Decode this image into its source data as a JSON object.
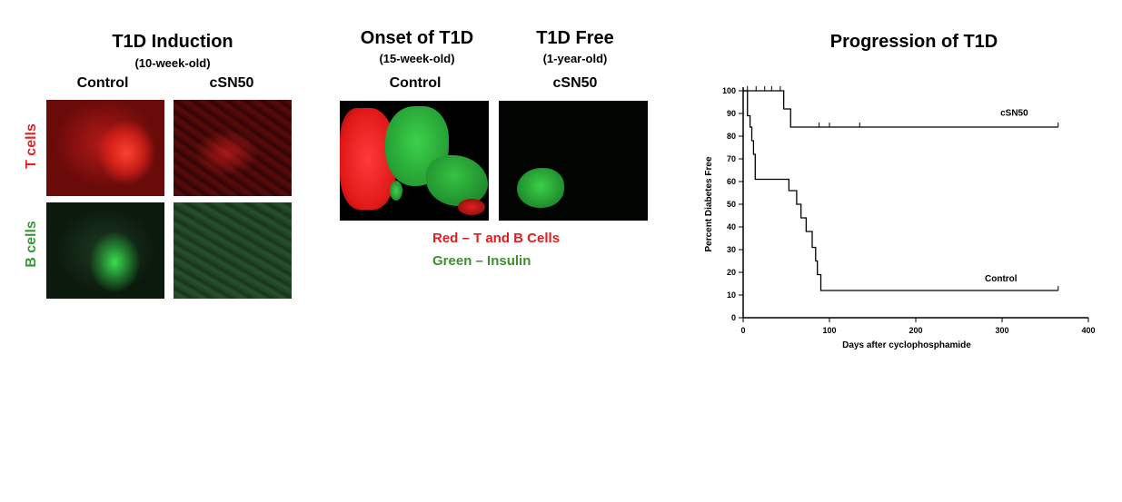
{
  "induction": {
    "title": "T1D Induction",
    "subtitle": "(10-week-old)",
    "columns": [
      "Control",
      "cSN50"
    ],
    "rows": [
      "T cells",
      "B cells"
    ]
  },
  "onset": {
    "title": "Onset of T1D",
    "subtitle": "(15-week-old)",
    "column": "Control"
  },
  "free": {
    "title": "T1D Free",
    "subtitle": "(1-year-old)",
    "column": "cSN50"
  },
  "stain_legend": {
    "red": "Red – T and B Cells",
    "green": "Green – Insulin"
  },
  "colors": {
    "t_cells": "#d9262a",
    "b_cells": "#3a9a3a",
    "legend_red": "#e01e1e",
    "legend_green": "#3f8f2e",
    "micro_red": "#ff2a2a",
    "micro_green": "#2ecc40"
  },
  "chart_data": {
    "type": "line",
    "title": "Progression of T1D",
    "xlabel": "Days after cyclophosphamide",
    "ylabel": "Percent Diabetes Free",
    "xlim": [
      0,
      400
    ],
    "ylim": [
      0,
      100
    ],
    "xticks": [
      0,
      100,
      200,
      300,
      400
    ],
    "yticks": [
      0,
      10,
      20,
      30,
      40,
      50,
      60,
      70,
      80,
      90,
      100
    ],
    "series": [
      {
        "name": "cSN50",
        "step_x": [
          0,
          47,
          47,
          50,
          50,
          55,
          55,
          365
        ],
        "step_y": [
          100,
          100,
          92,
          92,
          92,
          92,
          84,
          84
        ],
        "censor_x": [
          5,
          15,
          25,
          33,
          43,
          88,
          100,
          135,
          365
        ],
        "censor_y": [
          100,
          100,
          100,
          100,
          100,
          84,
          84,
          84,
          84
        ]
      },
      {
        "name": "Control",
        "step_x": [
          0,
          5,
          5,
          8,
          8,
          10,
          10,
          12,
          12,
          14,
          14,
          53,
          53,
          62,
          62,
          67,
          67,
          73,
          73,
          76,
          76,
          80,
          80,
          84,
          84,
          86,
          86,
          88,
          88,
          90,
          90,
          95,
          95,
          365
        ],
        "step_y": [
          100,
          100,
          89,
          89,
          84,
          84,
          78,
          78,
          72,
          72,
          61,
          61,
          56,
          56,
          50,
          50,
          44,
          44,
          38,
          38,
          38,
          38,
          31,
          31,
          25,
          25,
          19,
          19,
          19,
          19,
          12,
          12,
          12,
          12
        ],
        "censor_x": [
          365
        ],
        "censor_y": [
          12
        ]
      }
    ],
    "annotations": [
      "cSN50",
      "Control"
    ]
  }
}
